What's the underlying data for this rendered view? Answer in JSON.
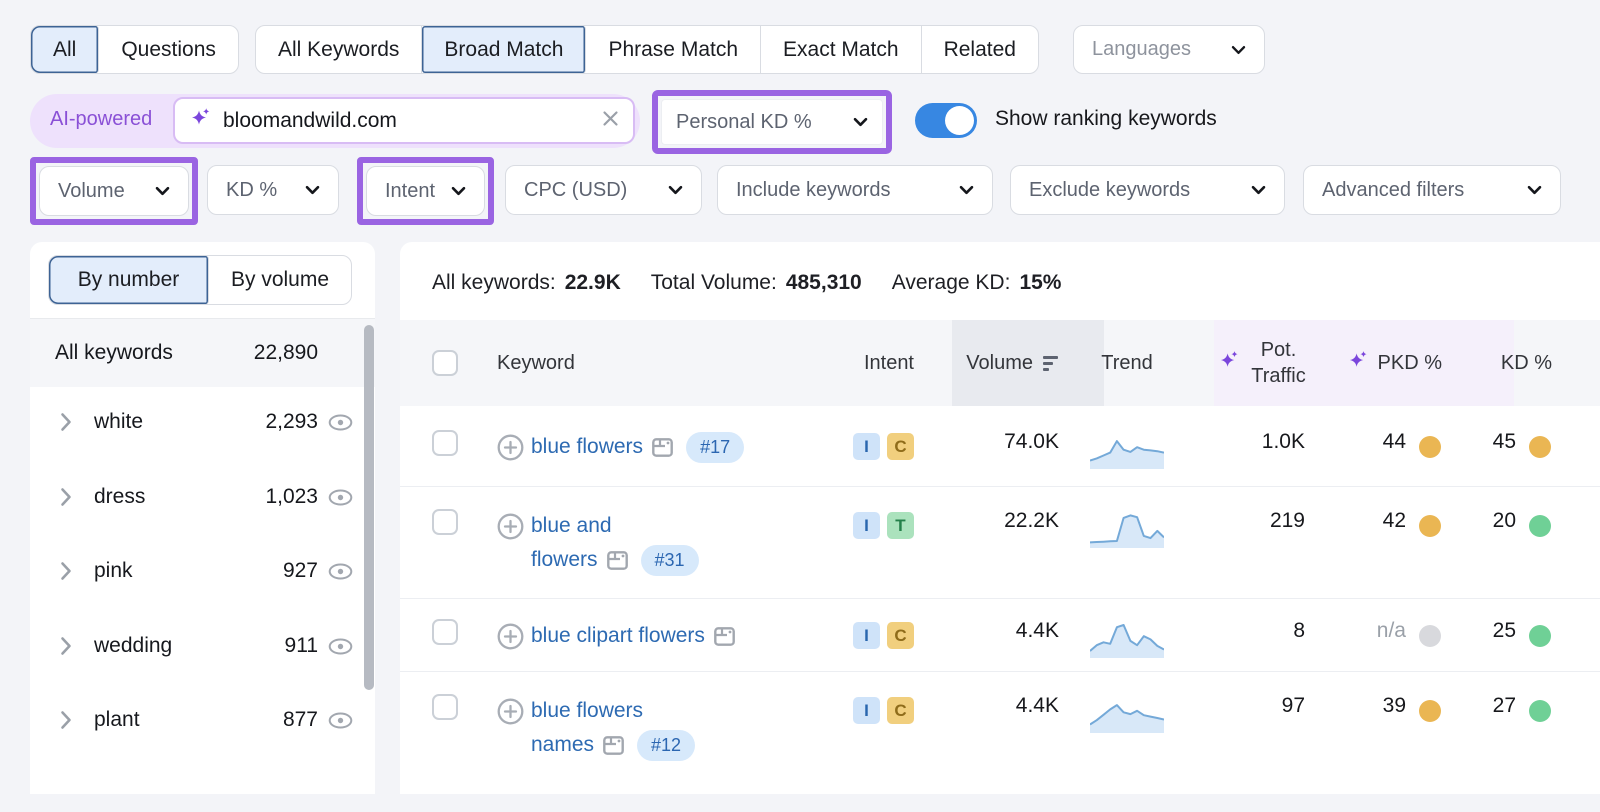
{
  "top_tabs": {
    "group1": [
      {
        "label": "All",
        "selected": true
      },
      {
        "label": "Questions",
        "selected": false
      }
    ],
    "group2": [
      {
        "label": "All Keywords",
        "selected": false
      },
      {
        "label": "Broad Match",
        "selected": true
      },
      {
        "label": "Phrase Match",
        "selected": false
      },
      {
        "label": "Exact Match",
        "selected": false
      },
      {
        "label": "Related",
        "selected": false
      }
    ],
    "languages_label": "Languages"
  },
  "search_row": {
    "ai_badge": "AI-powered",
    "input_value": "bloomandwild.com",
    "kd_selector_label": "Personal KD %",
    "toggle_label": "Show ranking keywords",
    "toggle_on": true
  },
  "filter_row": [
    {
      "label": "Volume",
      "annotated": true
    },
    {
      "label": "KD %",
      "annotated": false
    },
    {
      "label": "Intent",
      "annotated": true
    },
    {
      "label": "CPC (USD)",
      "annotated": false
    },
    {
      "label": "Include keywords",
      "annotated": false
    },
    {
      "label": "Exclude keywords",
      "annotated": false
    },
    {
      "label": "Advanced filters",
      "annotated": false
    }
  ],
  "sidebar": {
    "tabs": [
      {
        "label": "By number",
        "selected": true
      },
      {
        "label": "By volume",
        "selected": false
      }
    ],
    "all_row": {
      "label": "All keywords",
      "count": "22,890"
    },
    "groups": [
      {
        "label": "white",
        "count": "2,293"
      },
      {
        "label": "dress",
        "count": "1,023"
      },
      {
        "label": "pink",
        "count": "927"
      },
      {
        "label": "wedding",
        "count": "911"
      },
      {
        "label": "plant",
        "count": "877"
      }
    ]
  },
  "stats": [
    {
      "label": "All keywords:",
      "value": "22.9K"
    },
    {
      "label": "Total Volume:",
      "value": "485,310"
    },
    {
      "label": "Average KD:",
      "value": "15%"
    }
  ],
  "table": {
    "headers": {
      "keyword": "Keyword",
      "intent": "Intent",
      "volume": "Volume",
      "trend": "Trend",
      "pot_traffic_line1": "Pot.",
      "pot_traffic_line2": "Traffic",
      "pkd": "PKD %",
      "kd": "KD %"
    },
    "intent_styles": {
      "I": {
        "bg": "#cfe3f9",
        "fg": "#2966ae"
      },
      "C": {
        "bg": "#f1cf7e",
        "fg": "#8f6c1a"
      },
      "T": {
        "bg": "#abe2bd",
        "fg": "#24804a"
      }
    },
    "dot_colors": {
      "orange": "#eab653",
      "green": "#6fd096",
      "gray": "#d8d9dd"
    },
    "chart_data": {
      "type": "line",
      "note": "monthly search-volume trend sparklines per keyword row, values normalized 0-100",
      "series": [
        {
          "name": "blue flowers",
          "values": [
            18,
            24,
            32,
            40,
            72,
            48,
            42,
            55,
            48,
            46,
            44,
            40
          ]
        },
        {
          "name": "blue and flowers",
          "values": [
            10,
            11,
            12,
            13,
            14,
            78,
            85,
            80,
            28,
            22,
            42,
            24
          ]
        },
        {
          "name": "blue clipart flowers",
          "values": [
            14,
            30,
            38,
            34,
            80,
            86,
            42,
            30,
            55,
            46,
            28,
            18
          ]
        },
        {
          "name": "blue flowers names",
          "values": [
            18,
            30,
            45,
            60,
            72,
            52,
            47,
            56,
            44,
            40,
            36,
            32
          ]
        }
      ]
    },
    "rows": [
      {
        "lines": [
          "blue flowers"
        ],
        "position": "#17",
        "intents": [
          "I",
          "C"
        ],
        "volume": "74.0K",
        "pot_traffic": "1.0K",
        "pkd": {
          "value": "44",
          "dot": "orange"
        },
        "kd": {
          "value": "45",
          "dot": "orange"
        }
      },
      {
        "lines": [
          "blue and",
          "flowers"
        ],
        "position": "#31",
        "intents": [
          "I",
          "T"
        ],
        "volume": "22.2K",
        "pot_traffic": "219",
        "pkd": {
          "value": "42",
          "dot": "orange"
        },
        "kd": {
          "value": "20",
          "dot": "green"
        }
      },
      {
        "lines": [
          "blue clipart flowers"
        ],
        "position": null,
        "intents": [
          "I",
          "C"
        ],
        "volume": "4.4K",
        "pot_traffic": "8",
        "pkd": {
          "value": "n/a",
          "dot": "gray"
        },
        "kd": {
          "value": "25",
          "dot": "green"
        }
      },
      {
        "lines": [
          "blue flowers",
          "names"
        ],
        "position": "#12",
        "intents": [
          "I",
          "C"
        ],
        "volume": "4.4K",
        "pot_traffic": "97",
        "pkd": {
          "value": "39",
          "dot": "orange"
        },
        "kd": {
          "value": "27",
          "dot": "green"
        }
      }
    ]
  }
}
